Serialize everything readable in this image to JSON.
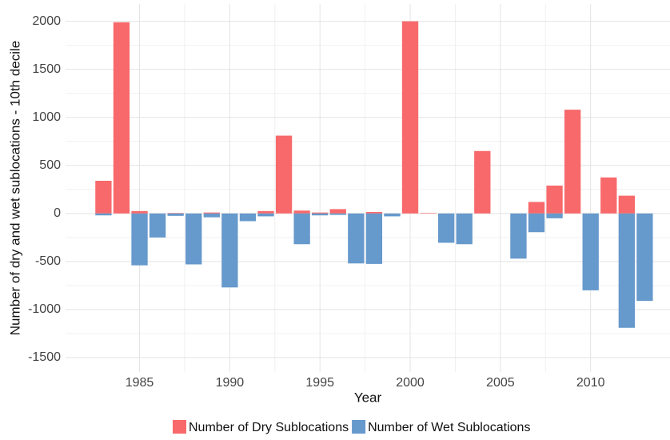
{
  "chart_data": {
    "type": "bar",
    "x_label": "Year",
    "y_label": "Number of dry and wet sublocations - 10th decile",
    "x": [
      1983,
      1984,
      1985,
      1986,
      1987,
      1988,
      1989,
      1990,
      1991,
      1992,
      1993,
      1994,
      1995,
      1996,
      1997,
      1998,
      1999,
      2000,
      2001,
      2002,
      2003,
      2004,
      2005,
      2006,
      2007,
      2008,
      2009,
      2010,
      2011,
      2012,
      2013
    ],
    "series": [
      {
        "name": "Number of Dry Sublocations",
        "color": "#f8696b",
        "values": [
          340,
          1990,
          25,
          0,
          5,
          0,
          10,
          0,
          0,
          25,
          810,
          30,
          10,
          45,
          0,
          15,
          0,
          2000,
          5,
          0,
          0,
          650,
          0,
          0,
          120,
          290,
          1080,
          0,
          375,
          185,
          0
        ]
      },
      {
        "name": "Number of Wet Sublocations",
        "color": "#6699cc",
        "values": [
          -20,
          0,
          -540,
          -250,
          -25,
          -530,
          -40,
          -770,
          -80,
          -30,
          0,
          -320,
          -20,
          -15,
          -520,
          -525,
          -30,
          0,
          0,
          -305,
          -320,
          0,
          0,
          -470,
          -195,
          -50,
          0,
          -800,
          0,
          -1190,
          -910
        ]
      }
    ],
    "xlim": [
      1980.9,
      2014.4
    ],
    "xticks": [
      1985,
      1990,
      1995,
      2000,
      2005,
      2010
    ],
    "ylim": [
      -1650,
      2180
    ],
    "yticks": [
      -1500,
      -1000,
      -500,
      0,
      500,
      1000,
      1500,
      2000
    ],
    "grid": true,
    "legend": "bottom"
  }
}
